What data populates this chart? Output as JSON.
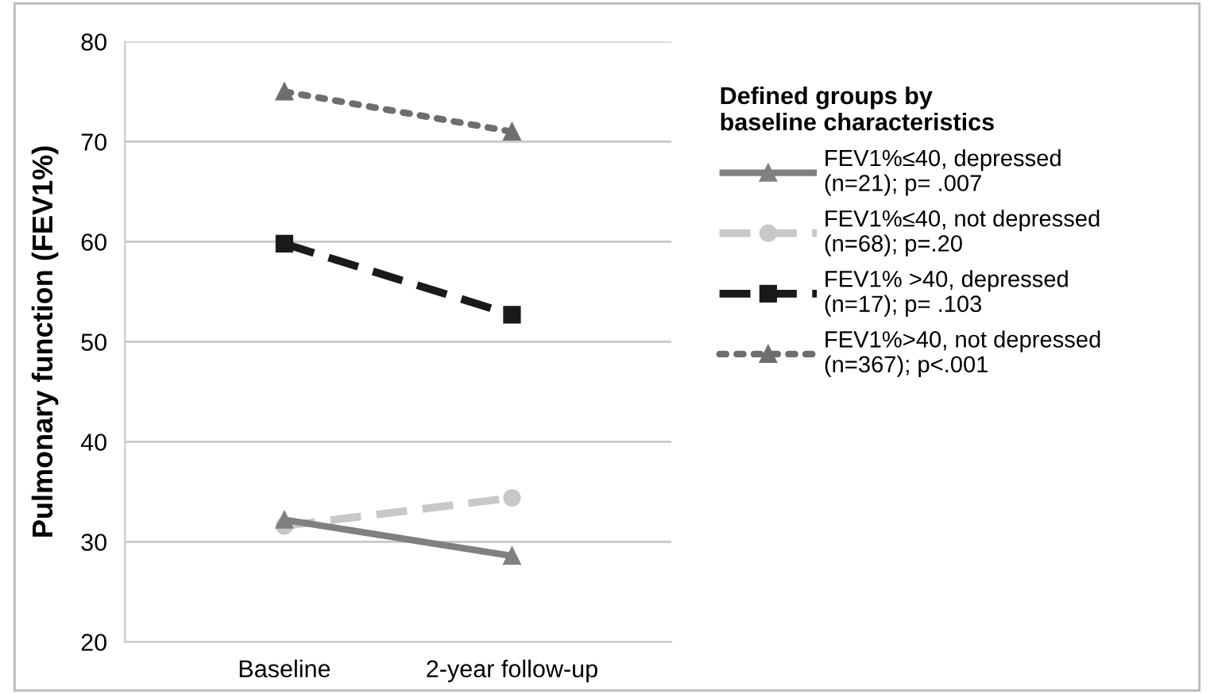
{
  "chart_data": {
    "type": "line",
    "ylabel": "Pulmonary function (FEV1%)",
    "legend_title": "Defined groups by\nbaseline characteristics",
    "categories": [
      "Baseline",
      "2-year follow-up"
    ],
    "ylim": [
      20,
      80
    ],
    "yticks": [
      20,
      30,
      40,
      50,
      60,
      70,
      80
    ],
    "grid": "y",
    "legend": "right",
    "series": [
      {
        "name": "FEV1%≤40, depressed\n(n=21); p= .007",
        "color": "#808080",
        "values": [
          32.2,
          28.6
        ],
        "marker": "triangle",
        "line_style": "solid"
      },
      {
        "name": "FEV1%≤40, not depressed\n(n=68); p=.20",
        "color": "#c8c8c8",
        "values": [
          31.6,
          34.4
        ],
        "marker": "circle",
        "line_style": "dashed"
      },
      {
        "name": "FEV1% >40, depressed\n(n=17); p= .103",
        "color": "#1a1a1a",
        "values": [
          59.8,
          52.7
        ],
        "marker": "square",
        "line_style": "dashed"
      },
      {
        "name": "FEV1%>40, not depressed\n(n=367); p<.001",
        "color": "#6e6e6e",
        "values": [
          75,
          71
        ],
        "marker": "triangle",
        "line_style": "dotted"
      }
    ]
  }
}
